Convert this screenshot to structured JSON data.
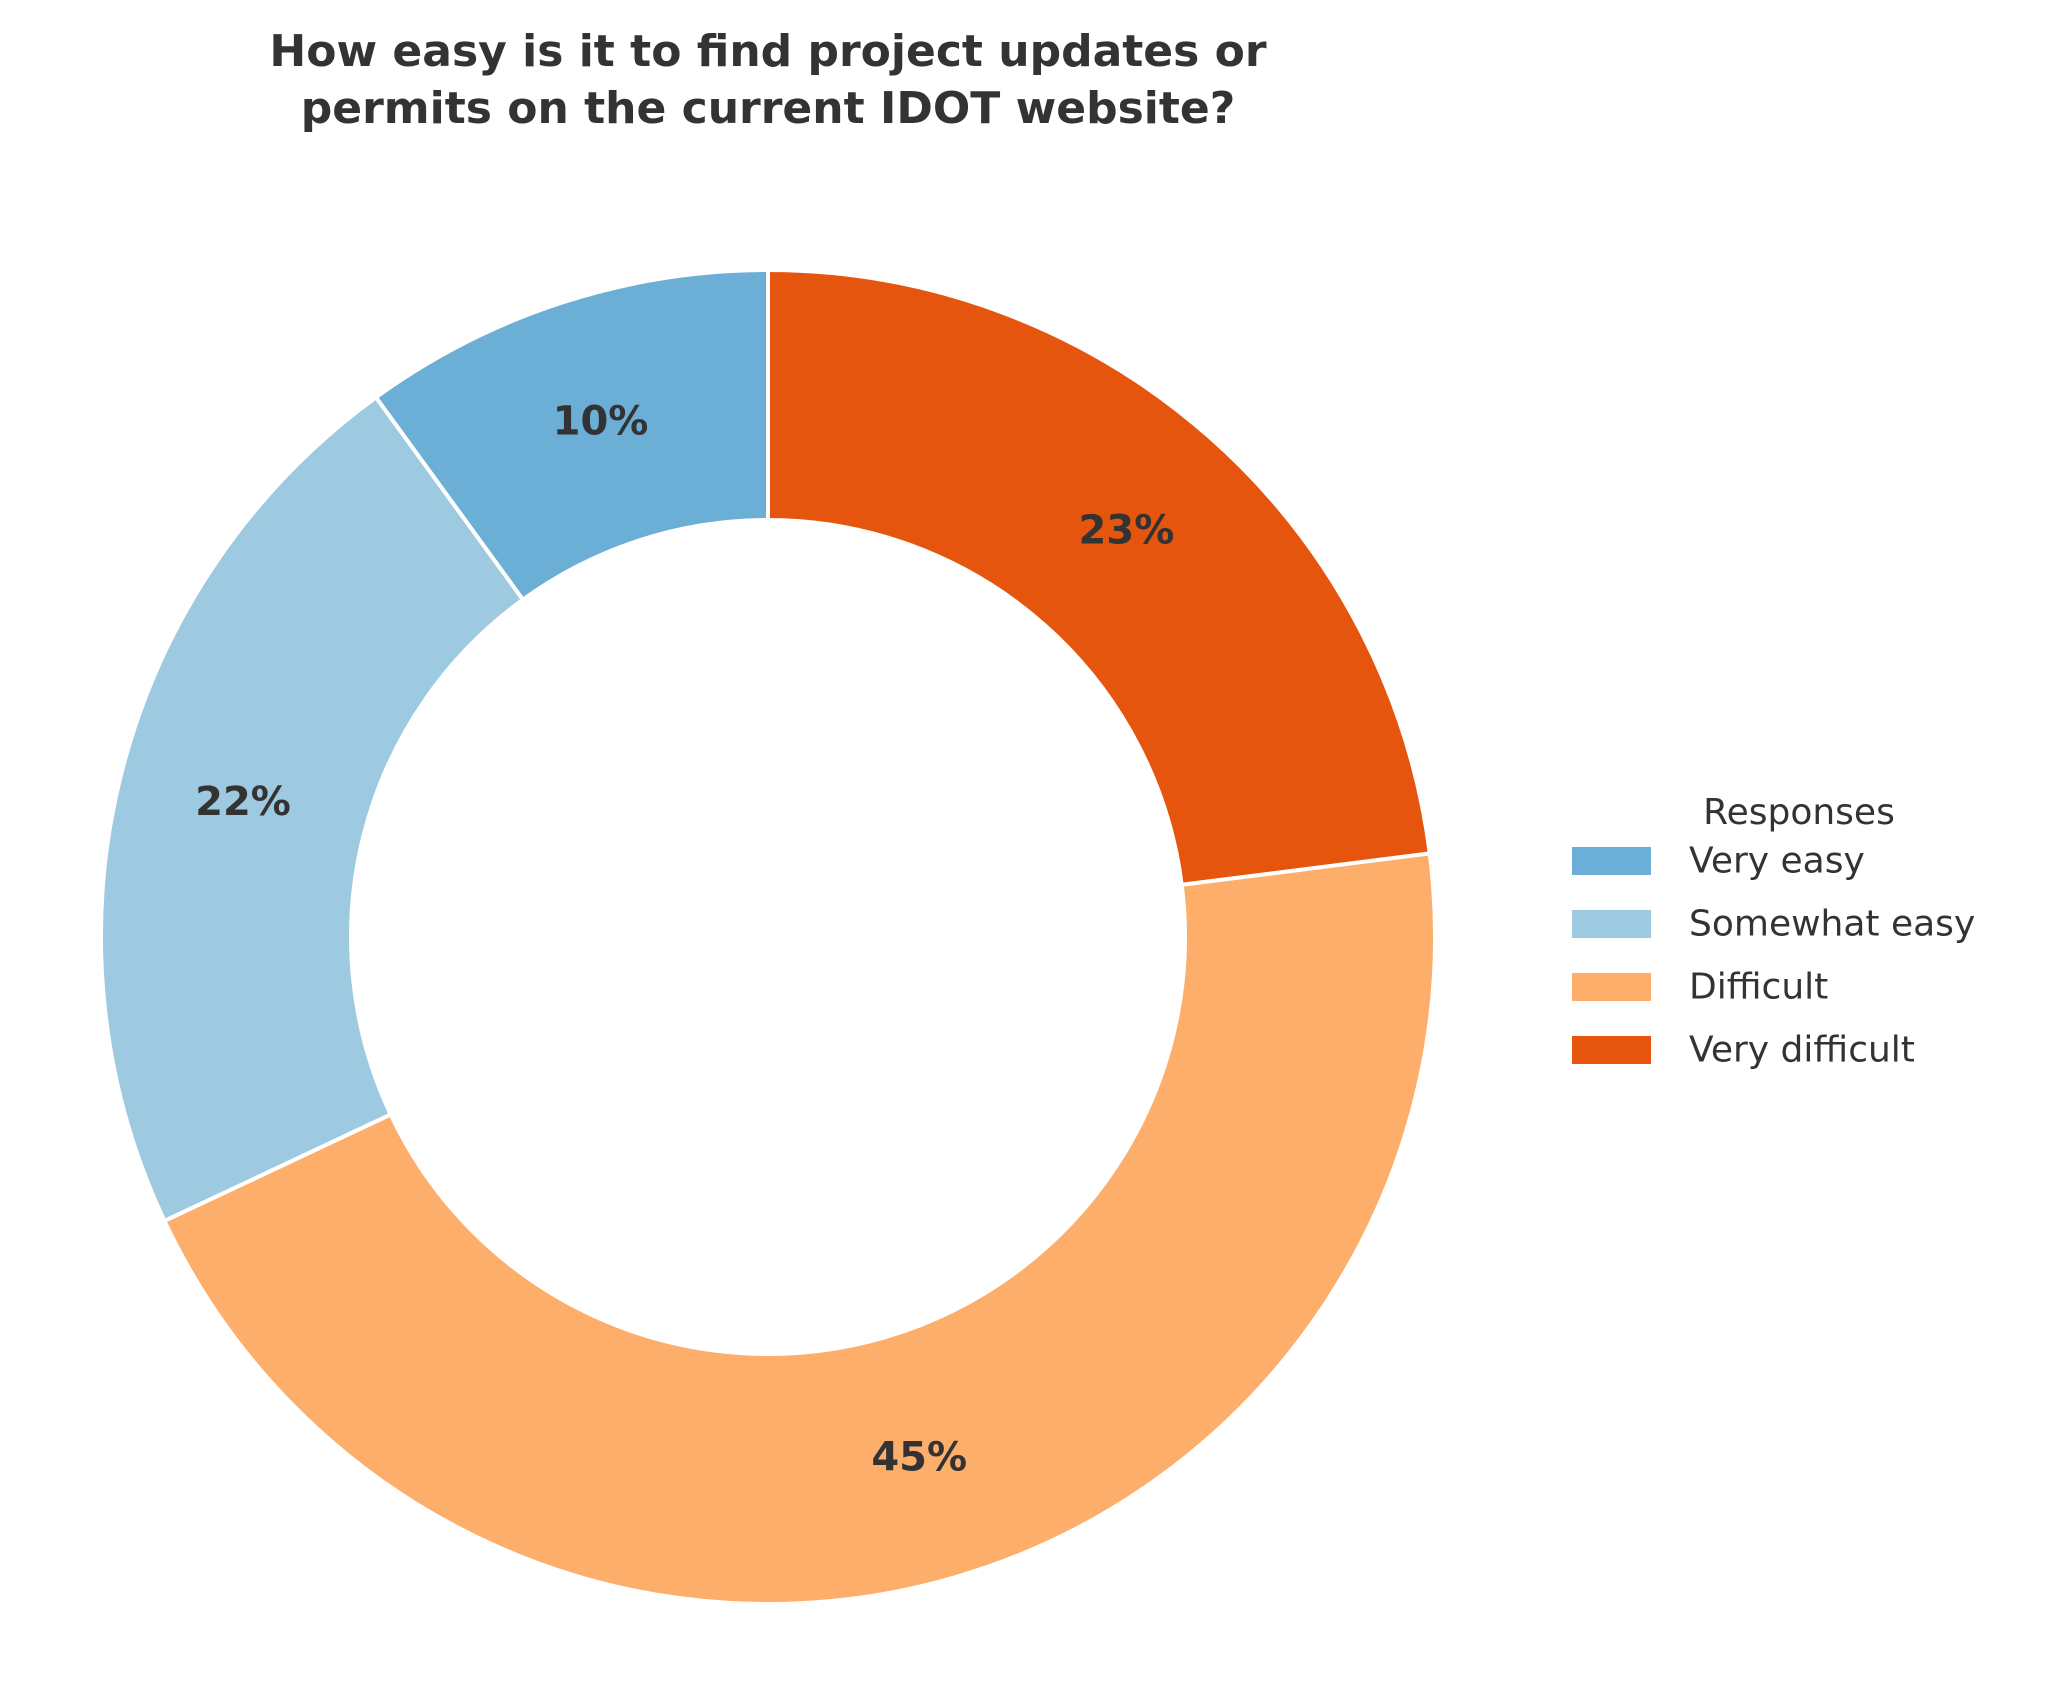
{
  "chart_data": {
    "type": "pie",
    "variant": "donut",
    "title_lines": [
      "How easy is it to find project updates or",
      "permits on the current IDOT website?"
    ],
    "categories": [
      "Very easy",
      "Somewhat easy",
      "Difficult",
      "Very difficult"
    ],
    "values": [
      10,
      22,
      45,
      23
    ],
    "labels": [
      "10%",
      "22%",
      "45%",
      "23%"
    ],
    "colors": [
      "#6baed6",
      "#9ecae1",
      "#fdae6b",
      "#e6550d"
    ],
    "start": "top",
    "direction": "counterclockwise",
    "legend": {
      "title": "Responses",
      "placement": "right"
    }
  }
}
